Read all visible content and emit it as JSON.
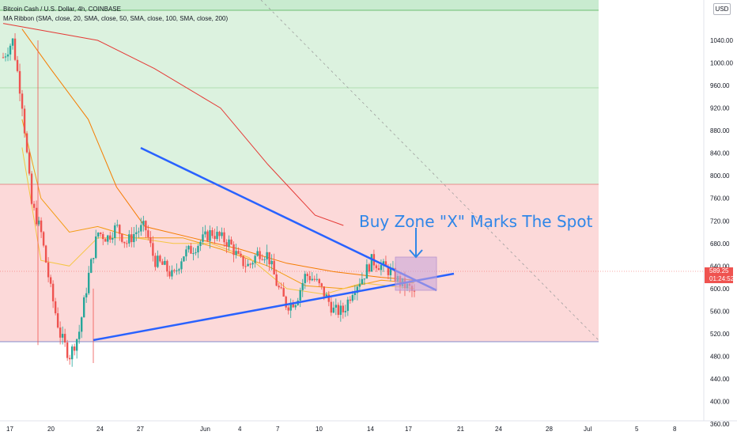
{
  "legend": {
    "symbol": "Bitcoin Cash / U.S. Dollar, 4h, COINBASE",
    "indicator": "MA Ribbon (SMA, close, 20, SMA, close, 50, SMA, close, 100, SMA, close, 200)"
  },
  "currency_button": "USD",
  "annotation": "Buy Zone \"X\" Marks The Spot",
  "last_price": "589.25",
  "countdown": "01:24:52",
  "colors": {
    "green_zone": "#dcf2df",
    "red_zone": "#fcd9d9",
    "trendline": "#2962ff",
    "bull": "#26a69a",
    "bear": "#ef5350",
    "ma20": "#f5c542",
    "ma50": "#f39c12",
    "ma100": "#f57c00",
    "ma200": "#e53935",
    "buy_box": "#c9a7d8"
  },
  "chart_data": {
    "type": "candlestick",
    "y_axis_ticks": [
      "1040.00",
      "1000.00",
      "960.00",
      "920.00",
      "880.00",
      "840.00",
      "800.00",
      "760.00",
      "720.00",
      "680.00",
      "640.00",
      "600.00",
      "560.00",
      "520.00",
      "480.00",
      "440.00",
      "400.00",
      "360.00"
    ],
    "x_axis_ticks": [
      "17",
      "20",
      "24",
      "27",
      "Jun",
      "4",
      "7",
      "10",
      "14",
      "17",
      "21",
      "24",
      "28",
      "Jul",
      "5",
      "8"
    ],
    "ylim": [
      340,
      1070
    ],
    "zones": [
      {
        "name": "green",
        "from": 744,
        "to": 1070
      },
      {
        "name": "red",
        "from": 465,
        "to": 744
      }
    ],
    "price_path": [
      [
        0,
        1010
      ],
      [
        2,
        1040
      ],
      [
        4,
        930
      ],
      [
        6,
        750
      ],
      [
        8,
        700
      ],
      [
        10,
        600
      ],
      [
        12,
        520
      ],
      [
        14,
        480
      ],
      [
        16,
        520
      ],
      [
        18,
        620
      ],
      [
        20,
        700
      ],
      [
        22,
        690
      ],
      [
        24,
        710
      ],
      [
        26,
        680
      ],
      [
        28,
        700
      ],
      [
        30,
        710
      ],
      [
        32,
        650
      ],
      [
        34,
        640
      ],
      [
        36,
        620
      ],
      [
        38,
        660
      ],
      [
        40,
        670
      ],
      [
        42,
        685
      ],
      [
        44,
        700
      ],
      [
        46,
        690
      ],
      [
        48,
        680
      ],
      [
        50,
        650
      ],
      [
        52,
        640
      ],
      [
        54,
        665
      ],
      [
        56,
        660
      ],
      [
        58,
        605
      ],
      [
        60,
        570
      ],
      [
        62,
        580
      ],
      [
        64,
        625
      ],
      [
        66,
        615
      ],
      [
        68,
        590
      ],
      [
        70,
        560
      ],
      [
        72,
        560
      ],
      [
        74,
        600
      ],
      [
        76,
        620
      ],
      [
        78,
        650
      ],
      [
        80,
        640
      ],
      [
        82,
        630
      ],
      [
        84,
        610
      ],
      [
        86,
        600
      ],
      [
        87,
        589.25
      ]
    ],
    "ma": [
      {
        "name": "MA200",
        "points": [
          [
            0,
            1070
          ],
          [
            20,
            1040
          ],
          [
            32,
            990
          ],
          [
            46,
            920
          ],
          [
            56,
            820
          ],
          [
            66,
            730
          ],
          [
            72,
            712
          ]
        ]
      },
      {
        "name": "MA100",
        "points": [
          [
            4,
            1060
          ],
          [
            10,
            990
          ],
          [
            18,
            900
          ],
          [
            24,
            780
          ],
          [
            30,
            710
          ],
          [
            40,
            690
          ],
          [
            50,
            670
          ],
          [
            60,
            645
          ],
          [
            70,
            630
          ],
          [
            80,
            620
          ],
          [
            87,
            615
          ]
        ]
      },
      {
        "name": "MA50",
        "points": [
          [
            4,
            900
          ],
          [
            8,
            760
          ],
          [
            14,
            700
          ],
          [
            20,
            710
          ],
          [
            28,
            690
          ],
          [
            38,
            690
          ],
          [
            46,
            670
          ],
          [
            56,
            640
          ],
          [
            64,
            605
          ],
          [
            72,
            600
          ],
          [
            80,
            615
          ],
          [
            87,
            610
          ]
        ]
      },
      {
        "name": "MA20",
        "points": [
          [
            4,
            850
          ],
          [
            8,
            650
          ],
          [
            14,
            640
          ],
          [
            20,
            690
          ],
          [
            28,
            690
          ],
          [
            36,
            680
          ],
          [
            44,
            680
          ],
          [
            52,
            655
          ],
          [
            60,
            600
          ],
          [
            68,
            590
          ],
          [
            76,
            610
          ],
          [
            87,
            600
          ]
        ]
      }
    ],
    "last_price": 589.25
  }
}
